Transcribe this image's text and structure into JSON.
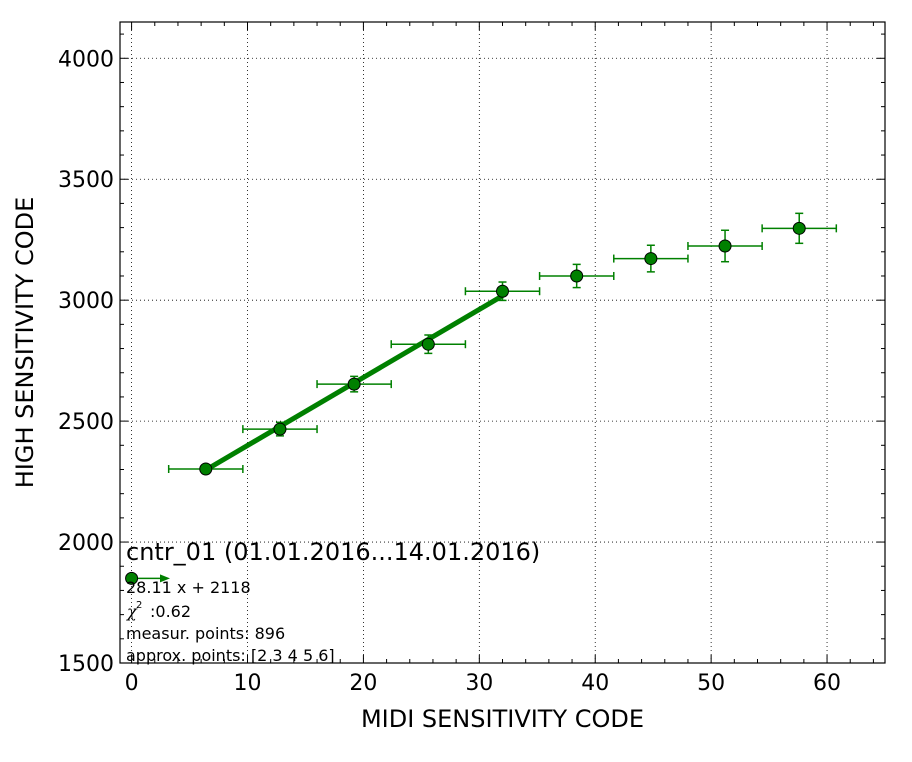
{
  "chart_data": {
    "type": "scatter",
    "xlabel": "MIDI SENSITIVITY CODE",
    "ylabel": "HIGH SENSITIVITY CODE",
    "xlim": [
      -1,
      65
    ],
    "ylim": [
      1500,
      4150
    ],
    "xticks": [
      0,
      10,
      20,
      30,
      40,
      50,
      60
    ],
    "yticks": [
      1500,
      2000,
      2500,
      3000,
      3500,
      4000
    ],
    "grid": true,
    "colors": {
      "series": "#008000",
      "marker_edge": "#000000",
      "fit_line": "#008000"
    },
    "series": [
      {
        "x": [
          6.4,
          12.8,
          19.2,
          25.6,
          32.0,
          38.4,
          44.8,
          51.2,
          57.6
        ],
        "y": [
          2302,
          2467,
          2653,
          2818,
          3037,
          3100,
          3172,
          3224,
          3297
        ],
        "xerr": [
          3.2,
          3.2,
          3.2,
          3.2,
          3.2,
          3.2,
          3.2,
          3.2,
          3.2
        ],
        "yerr": [
          12,
          28,
          32,
          38,
          38,
          48,
          55,
          65,
          62
        ]
      }
    ],
    "fit_line": {
      "x": [
        6.4,
        32.0
      ],
      "y": [
        2298,
        3018
      ]
    },
    "annotation": {
      "title": "cntr_01 (01.01.2016...14.01.2016)",
      "equation": "28.11 x + 2118",
      "chi_symbol": "χ",
      "chi_sup": "2",
      "chi_value": ":0.62",
      "measur_points": "measur. points: 896",
      "approx_points": "approx. points: [2 3 4 5 6]",
      "legend_marker": {
        "x": 0,
        "y": 1850
      }
    }
  }
}
